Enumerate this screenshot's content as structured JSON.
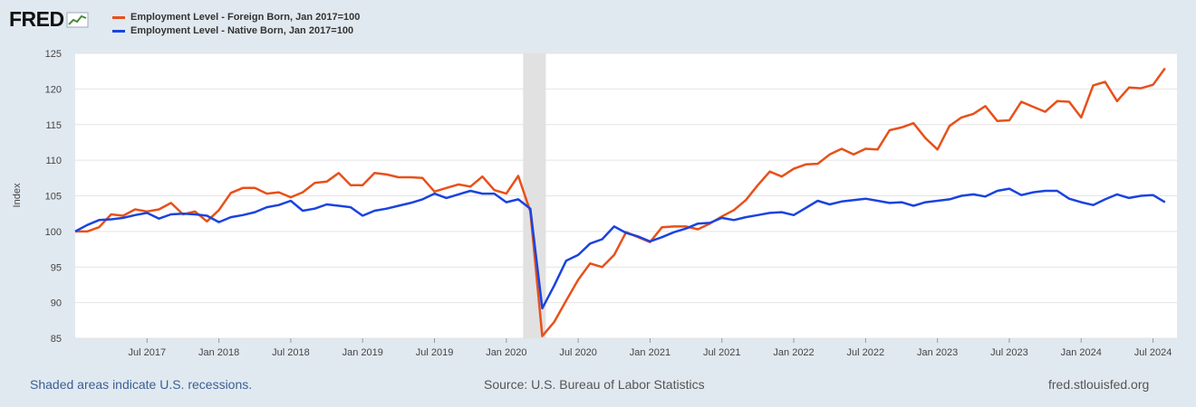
{
  "brand": {
    "name": "FRED"
  },
  "colors": {
    "foreign": "#e8501a",
    "native": "#1a43e0",
    "background": "#e1e9f0",
    "recession": "#e1e1e1"
  },
  "chart_data": {
    "type": "line",
    "ylabel": "Index",
    "ylim": [
      85,
      125
    ],
    "yticks": [
      85,
      90,
      95,
      100,
      105,
      110,
      115,
      120,
      125
    ],
    "xrange_months": [
      0,
      92
    ],
    "xticks": [
      {
        "m": 6,
        "label": "Jul 2017"
      },
      {
        "m": 12,
        "label": "Jan 2018"
      },
      {
        "m": 18,
        "label": "Jul 2018"
      },
      {
        "m": 24,
        "label": "Jan 2019"
      },
      {
        "m": 30,
        "label": "Jul 2019"
      },
      {
        "m": 36,
        "label": "Jan 2020"
      },
      {
        "m": 42,
        "label": "Jul 2020"
      },
      {
        "m": 48,
        "label": "Jan 2021"
      },
      {
        "m": 54,
        "label": "Jul 2021"
      },
      {
        "m": 60,
        "label": "Jan 2022"
      },
      {
        "m": 66,
        "label": "Jul 2022"
      },
      {
        "m": 72,
        "label": "Jan 2023"
      },
      {
        "m": 78,
        "label": "Jul 2023"
      },
      {
        "m": 84,
        "label": "Jan 2024"
      },
      {
        "m": 90,
        "label": "Jul 2024"
      }
    ],
    "recession": [
      37.4,
      39.3
    ],
    "series": [
      {
        "name": "Employment Level - Foreign Born, Jan 2017=100",
        "key": "foreign",
        "values": [
          100,
          100,
          100.6,
          102.4,
          102.2,
          103.1,
          102.8,
          103.1,
          104,
          102.4,
          102.8,
          101.4,
          103,
          105.4,
          106.1,
          106.1,
          105.3,
          105.5,
          104.8,
          105.5,
          106.8,
          107,
          108.2,
          106.5,
          106.5,
          108.2,
          108,
          107.6,
          107.6,
          107.5,
          105.6,
          106.1,
          106.6,
          106.3,
          107.7,
          105.8,
          105.3,
          107.8,
          102.8,
          85.3,
          87.3,
          90.3,
          93.2,
          95.5,
          95,
          96.7,
          99.9,
          99.2,
          98.5,
          100.6,
          100.7,
          100.7,
          100.3,
          101.1,
          102.1,
          103,
          104.4,
          106.5,
          108.4,
          107.7,
          108.8,
          109.4,
          109.5,
          110.8,
          111.6,
          110.8,
          111.6,
          111.5,
          114.2,
          114.6,
          115.2,
          113.1,
          111.5,
          114.8,
          116,
          116.5,
          117.6,
          115.5,
          115.6,
          118.2,
          117.5,
          116.8,
          118.3,
          118.2,
          116,
          120.5,
          121,
          118.3,
          120.2,
          120.1,
          120.6,
          122.9
        ]
      },
      {
        "name": "Employment Level - Native Born, Jan 2017=100",
        "key": "native",
        "values": [
          100,
          100.9,
          101.6,
          101.7,
          101.9,
          102.3,
          102.6,
          101.8,
          102.4,
          102.5,
          102.4,
          102.2,
          101.3,
          102,
          102.3,
          102.7,
          103.4,
          103.7,
          104.3,
          102.9,
          103.2,
          103.8,
          103.6,
          103.4,
          102.2,
          102.9,
          103.2,
          103.6,
          104,
          104.5,
          105.3,
          104.7,
          105.2,
          105.7,
          105.3,
          105.3,
          104.1,
          104.5,
          103.2,
          89.2,
          92.4,
          95.9,
          96.7,
          98.3,
          98.9,
          100.7,
          99.8,
          99.3,
          98.6,
          99.2,
          99.9,
          100.4,
          101.1,
          101.2,
          101.9,
          101.6,
          102,
          102.3,
          102.6,
          102.7,
          102.3,
          103.3,
          104.3,
          103.8,
          104.2,
          104.4,
          104.6,
          104.3,
          104,
          104.1,
          103.6,
          104.1,
          104.3,
          104.5,
          105,
          105.2,
          104.9,
          105.7,
          106,
          105.1,
          105.5,
          105.7,
          105.7,
          104.6,
          104.1,
          103.7,
          104.5,
          105.2,
          104.7,
          105,
          105.1,
          104.1
        ]
      }
    ]
  },
  "footer": {
    "recession_note": "Shaded areas indicate U.S. recessions.",
    "source": "Source: U.S. Bureau of Labor Statistics",
    "site": "fred.stlouisfed.org"
  }
}
